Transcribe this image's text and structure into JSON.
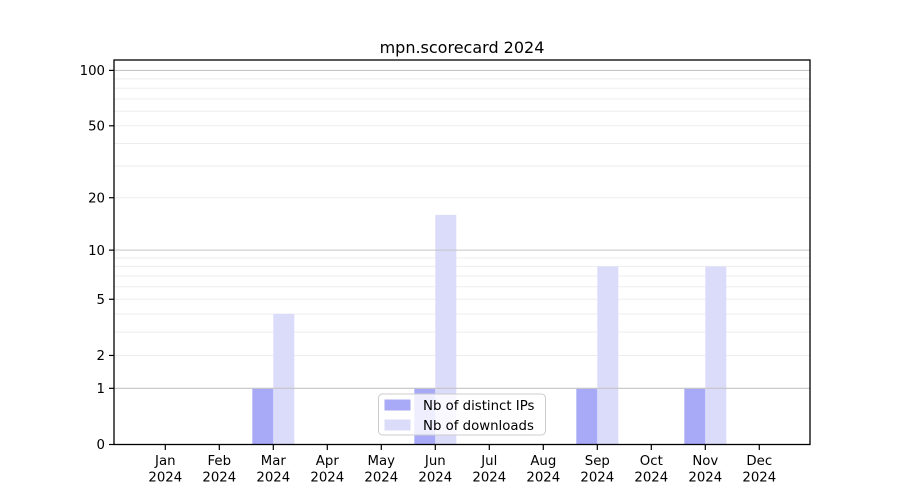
{
  "chart_data": {
    "type": "bar",
    "title": "mpn.scorecard 2024",
    "categories": [
      "Jan 2024",
      "Feb 2024",
      "Mar 2024",
      "Apr 2024",
      "May 2024",
      "Jun 2024",
      "Jul 2024",
      "Aug 2024",
      "Sep 2024",
      "Oct 2024",
      "Nov 2024",
      "Dec 2024"
    ],
    "series": [
      {
        "name": "Nb of distinct IPs",
        "color": "#a8aaf7",
        "values": [
          0,
          0,
          1,
          0,
          0,
          1,
          0,
          0,
          1,
          0,
          1,
          0
        ]
      },
      {
        "name": "Nb of downloads",
        "color": "#dadcfa",
        "values": [
          0,
          0,
          4,
          0,
          0,
          16,
          0,
          0,
          8,
          0,
          8,
          0
        ]
      }
    ],
    "xlabel": "",
    "ylabel": "",
    "yscale": "log1p",
    "ylim": [
      0,
      114
    ],
    "yticks": [
      0,
      1,
      2,
      5,
      10,
      20,
      50,
      100
    ],
    "gridlines": {
      "major": [
        1,
        10,
        100
      ],
      "minor": [
        2,
        3,
        4,
        5,
        6,
        7,
        8,
        9,
        20,
        30,
        40,
        50,
        60,
        70,
        80,
        90
      ]
    },
    "grid": true,
    "legend_position": "lower-center-inside"
  },
  "colors": {
    "background": "#ffffff",
    "axis": "#000000",
    "major_grid": "#c5c5c5",
    "minor_grid": "#ededed",
    "legend_border": "#cccccc",
    "legend_background": "rgba(255,255,255,0.8)"
  }
}
